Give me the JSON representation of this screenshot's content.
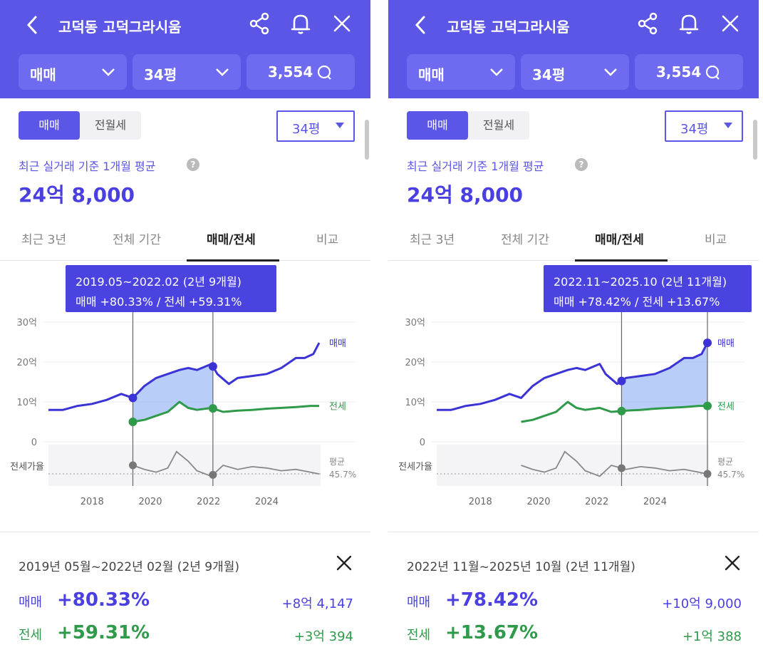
{
  "colors": {
    "accent": "#5b56e6",
    "sale": "#3b33d6",
    "jeonse": "#2e9a4a",
    "ratio": "#888888"
  },
  "header": {
    "title": "고덕동 고덕그라시움",
    "type_select": "매매",
    "area_select": "34평",
    "count": "3,554"
  },
  "segment": {
    "sale": "매매",
    "rent": "전월세"
  },
  "area_dropdown": "34평",
  "price_label": "최근 실거래 기준 1개월 평균",
  "help_mark": "?",
  "avg_price": "24억 8,000",
  "tabs": [
    "최근 3년",
    "전체 기간",
    "매매/전세",
    "비교"
  ],
  "panels": [
    {
      "tooltip": {
        "line1": "2019.05~2022.02 (2년 9개월)",
        "line2": "매매 +80.33%  /  전세 +59.31%"
      },
      "summary": {
        "range": "2019년 05월~2022년 02월 (2년 9개월)",
        "sale_label": "매매",
        "sale_pct": "+80.33%",
        "sale_amt": "+8억 4,147",
        "jeonse_label": "전세",
        "jeonse_pct": "+59.31%",
        "jeonse_amt": "+3억 394"
      }
    },
    {
      "tooltip": {
        "line1": "2022.11~2025.10 (2년 11개월)",
        "line2": "매매 +78.42%  /  전세 +13.67%"
      },
      "summary": {
        "range": "2022년 11월~2025년 10월 (2년 11개월)",
        "sale_label": "매매",
        "sale_pct": "+78.42%",
        "sale_amt": "+10억 9,000",
        "jeonse_label": "전세",
        "jeonse_pct": "+13.67%",
        "jeonse_amt": "+1억 388"
      }
    }
  ],
  "chart_data": {
    "type": "line",
    "title": "매매/전세",
    "x_ticks": [
      "2018",
      "2020",
      "2022",
      "2024"
    ],
    "y_ticks": [
      "30억",
      "20억",
      "10억",
      "0"
    ],
    "ylim": [
      0,
      30
    ],
    "units": "억",
    "series": [
      {
        "name": "매매",
        "x": [
          2016.5,
          2017,
          2017.5,
          2018,
          2018.5,
          2019,
          2019.4,
          2019.8,
          2020.2,
          2020.6,
          2021,
          2021.3,
          2021.6,
          2022.1,
          2022.3,
          2022.7,
          2023,
          2023.5,
          2024,
          2024.5,
          2025,
          2025.3,
          2025.6,
          2025.8
        ],
        "values": [
          8,
          8,
          9,
          9.5,
          10.5,
          12,
          11,
          14,
          16,
          17,
          18,
          18.5,
          18,
          19.5,
          17,
          14.5,
          16,
          16.5,
          17,
          18.5,
          21,
          21,
          22,
          24.8
        ]
      },
      {
        "name": "전세",
        "x": [
          2019.4,
          2019.8,
          2020.2,
          2020.6,
          2021,
          2021.3,
          2021.6,
          2022.1,
          2022.5,
          2023,
          2023.5,
          2024,
          2024.5,
          2025,
          2025.5,
          2025.8
        ],
        "values": [
          5,
          5.5,
          6.5,
          7.5,
          10,
          8.5,
          8,
          8.5,
          7.5,
          7.8,
          8,
          8.3,
          8.5,
          8.7,
          9,
          9
        ]
      },
      {
        "name": "전세가율",
        "x": [
          2019.4,
          2019.8,
          2020.2,
          2020.6,
          2020.9,
          2021.3,
          2021.6,
          2022.1,
          2022.5,
          2023,
          2023.5,
          2024,
          2024.5,
          2025,
          2025.5,
          2025.8
        ],
        "values": [
          52,
          49,
          47,
          50,
          62,
          55,
          48,
          44,
          52,
          49,
          51,
          50,
          48,
          49,
          47,
          45.7
        ]
      }
    ],
    "series_labels": {
      "sale": "매매",
      "jeonse": "전세"
    },
    "ratio_label": "전세가율",
    "ratio_avg_label": "평균",
    "ratio_avg_value": "45.7%",
    "selections": [
      {
        "from": 2019.4,
        "to": 2022.15
      },
      {
        "from": 2022.85,
        "to": 2025.8
      }
    ]
  }
}
